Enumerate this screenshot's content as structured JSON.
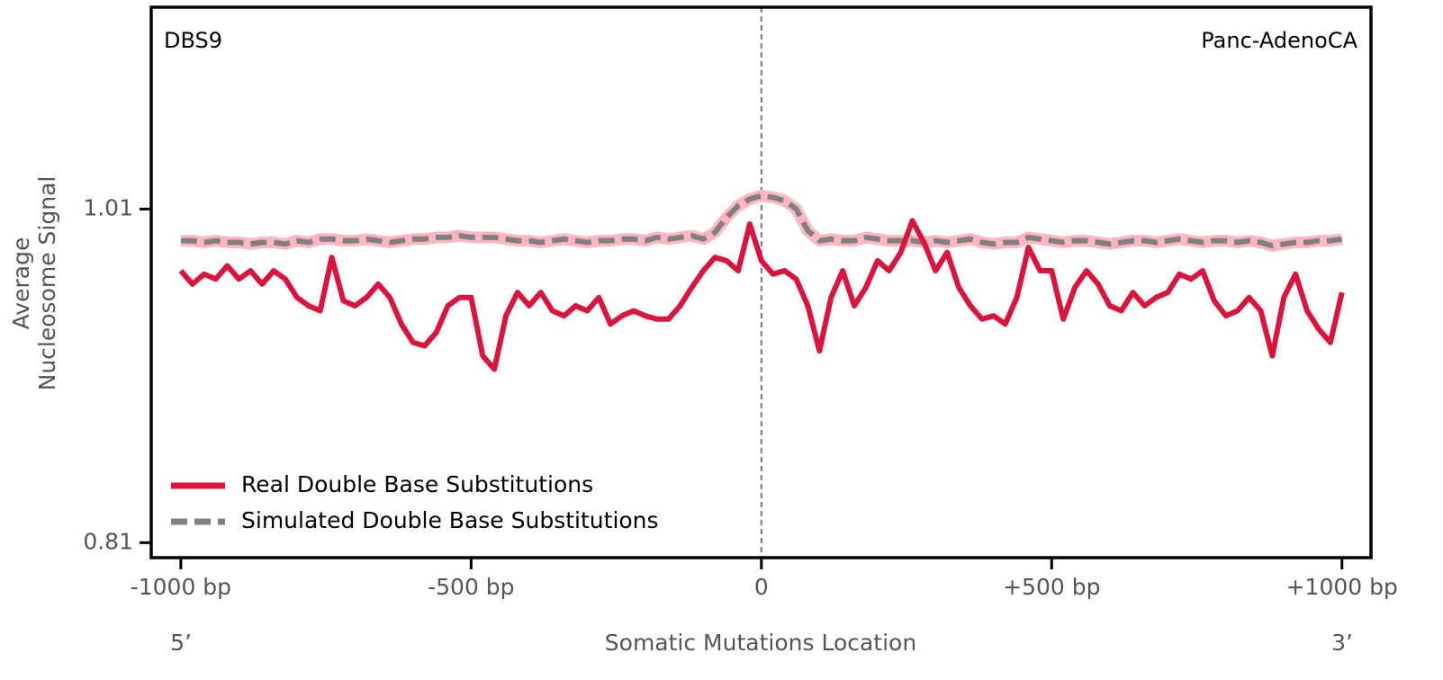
{
  "chart_data": {
    "type": "line",
    "annotations": [
      "DBS9",
      "Panc-AdenoCA"
    ],
    "ylabel": [
      "Average",
      "Nucleosome Signal"
    ],
    "xlabel": "Somatic Mutations Location",
    "end_labels": [
      "5’",
      "3’"
    ],
    "xlim": [
      -1051,
      1050
    ],
    "ylim": [
      0.801,
      1.131
    ],
    "xticks": [
      {
        "value": -1000,
        "label": "-1000 bp"
      },
      {
        "value": -500,
        "label": "-500 bp"
      },
      0,
      {
        "value": 500,
        "label": "+500 bp"
      },
      {
        "value": 1000,
        "label": "+1000 bp"
      }
    ],
    "yticks": [
      0.81,
      1.01
    ],
    "vline": 0,
    "x": [
      -1000,
      -980,
      -960,
      -940,
      -920,
      -900,
      -880,
      -860,
      -840,
      -820,
      -800,
      -780,
      -760,
      -740,
      -720,
      -700,
      -680,
      -660,
      -640,
      -620,
      -600,
      -580,
      -560,
      -540,
      -520,
      -500,
      -480,
      -460,
      -440,
      -420,
      -400,
      -380,
      -360,
      -340,
      -320,
      -300,
      -280,
      -260,
      -240,
      -220,
      -200,
      -180,
      -160,
      -140,
      -120,
      -100,
      -80,
      -60,
      -40,
      -20,
      0,
      20,
      40,
      60,
      80,
      100,
      120,
      140,
      160,
      180,
      200,
      220,
      240,
      260,
      280,
      300,
      320,
      340,
      360,
      380,
      400,
      420,
      440,
      460,
      480,
      500,
      520,
      540,
      560,
      580,
      600,
      620,
      640,
      660,
      680,
      700,
      720,
      740,
      760,
      780,
      800,
      820,
      840,
      860,
      880,
      900,
      920,
      940,
      960,
      980,
      1000
    ],
    "series": [
      {
        "name": "Real Double Base Substitutions",
        "color": "#dc143c",
        "dashed": false,
        "values": [
          0.973,
          0.965,
          0.971,
          0.968,
          0.976,
          0.968,
          0.973,
          0.965,
          0.973,
          0.968,
          0.957,
          0.952,
          0.949,
          0.981,
          0.955,
          0.952,
          0.957,
          0.965,
          0.957,
          0.941,
          0.93,
          0.928,
          0.936,
          0.952,
          0.957,
          0.957,
          0.922,
          0.914,
          0.946,
          0.96,
          0.952,
          0.96,
          0.949,
          0.946,
          0.952,
          0.949,
          0.957,
          0.941,
          0.946,
          0.949,
          0.946,
          0.944,
          0.944,
          0.952,
          0.963,
          0.973,
          0.981,
          0.979,
          0.973,
          1.001,
          0.979,
          0.971,
          0.973,
          0.968,
          0.952,
          0.925,
          0.957,
          0.973,
          0.952,
          0.963,
          0.979,
          0.973,
          0.984,
          1.003,
          0.99,
          0.973,
          0.984,
          0.963,
          0.952,
          0.944,
          0.946,
          0.941,
          0.957,
          0.987,
          0.973,
          0.973,
          0.944,
          0.963,
          0.973,
          0.965,
          0.952,
          0.949,
          0.96,
          0.952,
          0.957,
          0.96,
          0.971,
          0.968,
          0.973,
          0.955,
          0.946,
          0.949,
          0.957,
          0.949,
          0.922,
          0.957,
          0.971,
          0.949,
          0.938,
          0.93,
          0.96
        ]
      },
      {
        "name": "Simulated Double Base Substitutions",
        "color": "#808080",
        "dashed": true,
        "halo_color": "#ffb6c1",
        "values": [
          0.991,
          0.991,
          0.99,
          0.991,
          0.99,
          0.99,
          0.989,
          0.99,
          0.99,
          0.989,
          0.991,
          0.99,
          0.992,
          0.992,
          0.991,
          0.991,
          0.992,
          0.991,
          0.99,
          0.991,
          0.992,
          0.992,
          0.993,
          0.993,
          0.994,
          0.993,
          0.993,
          0.993,
          0.992,
          0.991,
          0.991,
          0.99,
          0.991,
          0.992,
          0.991,
          0.99,
          0.991,
          0.991,
          0.992,
          0.992,
          0.991,
          0.993,
          0.992,
          0.993,
          0.994,
          0.992,
          0.996,
          1.005,
          1.012,
          1.016,
          1.018,
          1.017,
          1.015,
          1.01,
          0.997,
          0.991,
          0.992,
          0.991,
          0.991,
          0.993,
          0.992,
          0.991,
          0.991,
          0.991,
          0.99,
          0.991,
          0.99,
          0.991,
          0.992,
          0.99,
          0.989,
          0.99,
          0.99,
          0.993,
          0.992,
          0.991,
          0.99,
          0.991,
          0.991,
          0.99,
          0.989,
          0.99,
          0.991,
          0.991,
          0.99,
          0.991,
          0.992,
          0.991,
          0.99,
          0.991,
          0.991,
          0.99,
          0.991,
          0.99,
          0.988,
          0.989,
          0.99,
          0.99,
          0.991,
          0.991,
          0.992
        ]
      }
    ]
  }
}
